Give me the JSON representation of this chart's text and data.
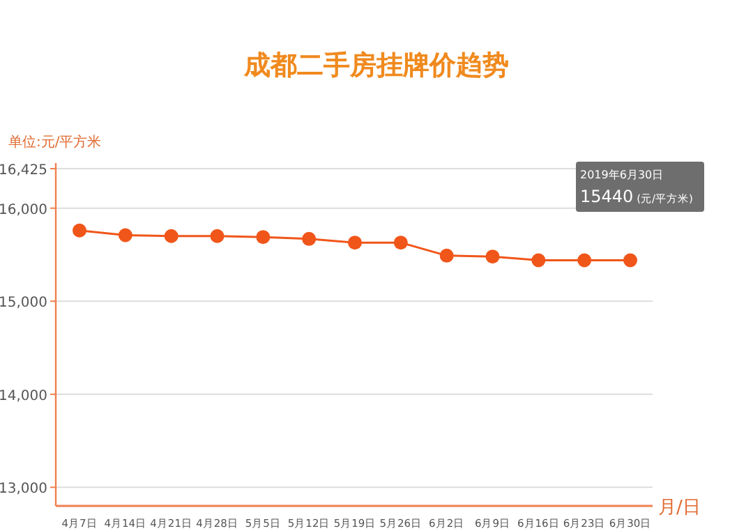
{
  "chart_data": {
    "type": "line",
    "title": "成都二手房挂牌价趋势",
    "ylabel": "单位:元/平方米",
    "xlabel": "月/日",
    "categories": [
      "4月7日",
      "4月14日",
      "4月21日",
      "4月28日",
      "5月5日",
      "5月12日",
      "5月19日",
      "5月26日",
      "6月2日",
      "6月9日",
      "6月16日",
      "6月23日",
      "6月30日"
    ],
    "values": [
      15760,
      15710,
      15700,
      15700,
      15690,
      15670,
      15630,
      15630,
      15490,
      15480,
      15440,
      15440,
      15440
    ],
    "color": "#f0561a",
    "marker": "circle",
    "grid": "y",
    "ylim": [
      12800,
      16425
    ],
    "yticks": [
      {
        "value": 13000,
        "label": "13,000"
      },
      {
        "value": 14000,
        "label": "14,000"
      },
      {
        "value": 15000,
        "label": "15,000"
      },
      {
        "value": 16000,
        "label": "16,000"
      },
      {
        "value": 16425,
        "label": "16,425"
      }
    ],
    "annotations": [
      "2019年6月30日",
      "15440 (元/平方米)"
    ]
  }
}
